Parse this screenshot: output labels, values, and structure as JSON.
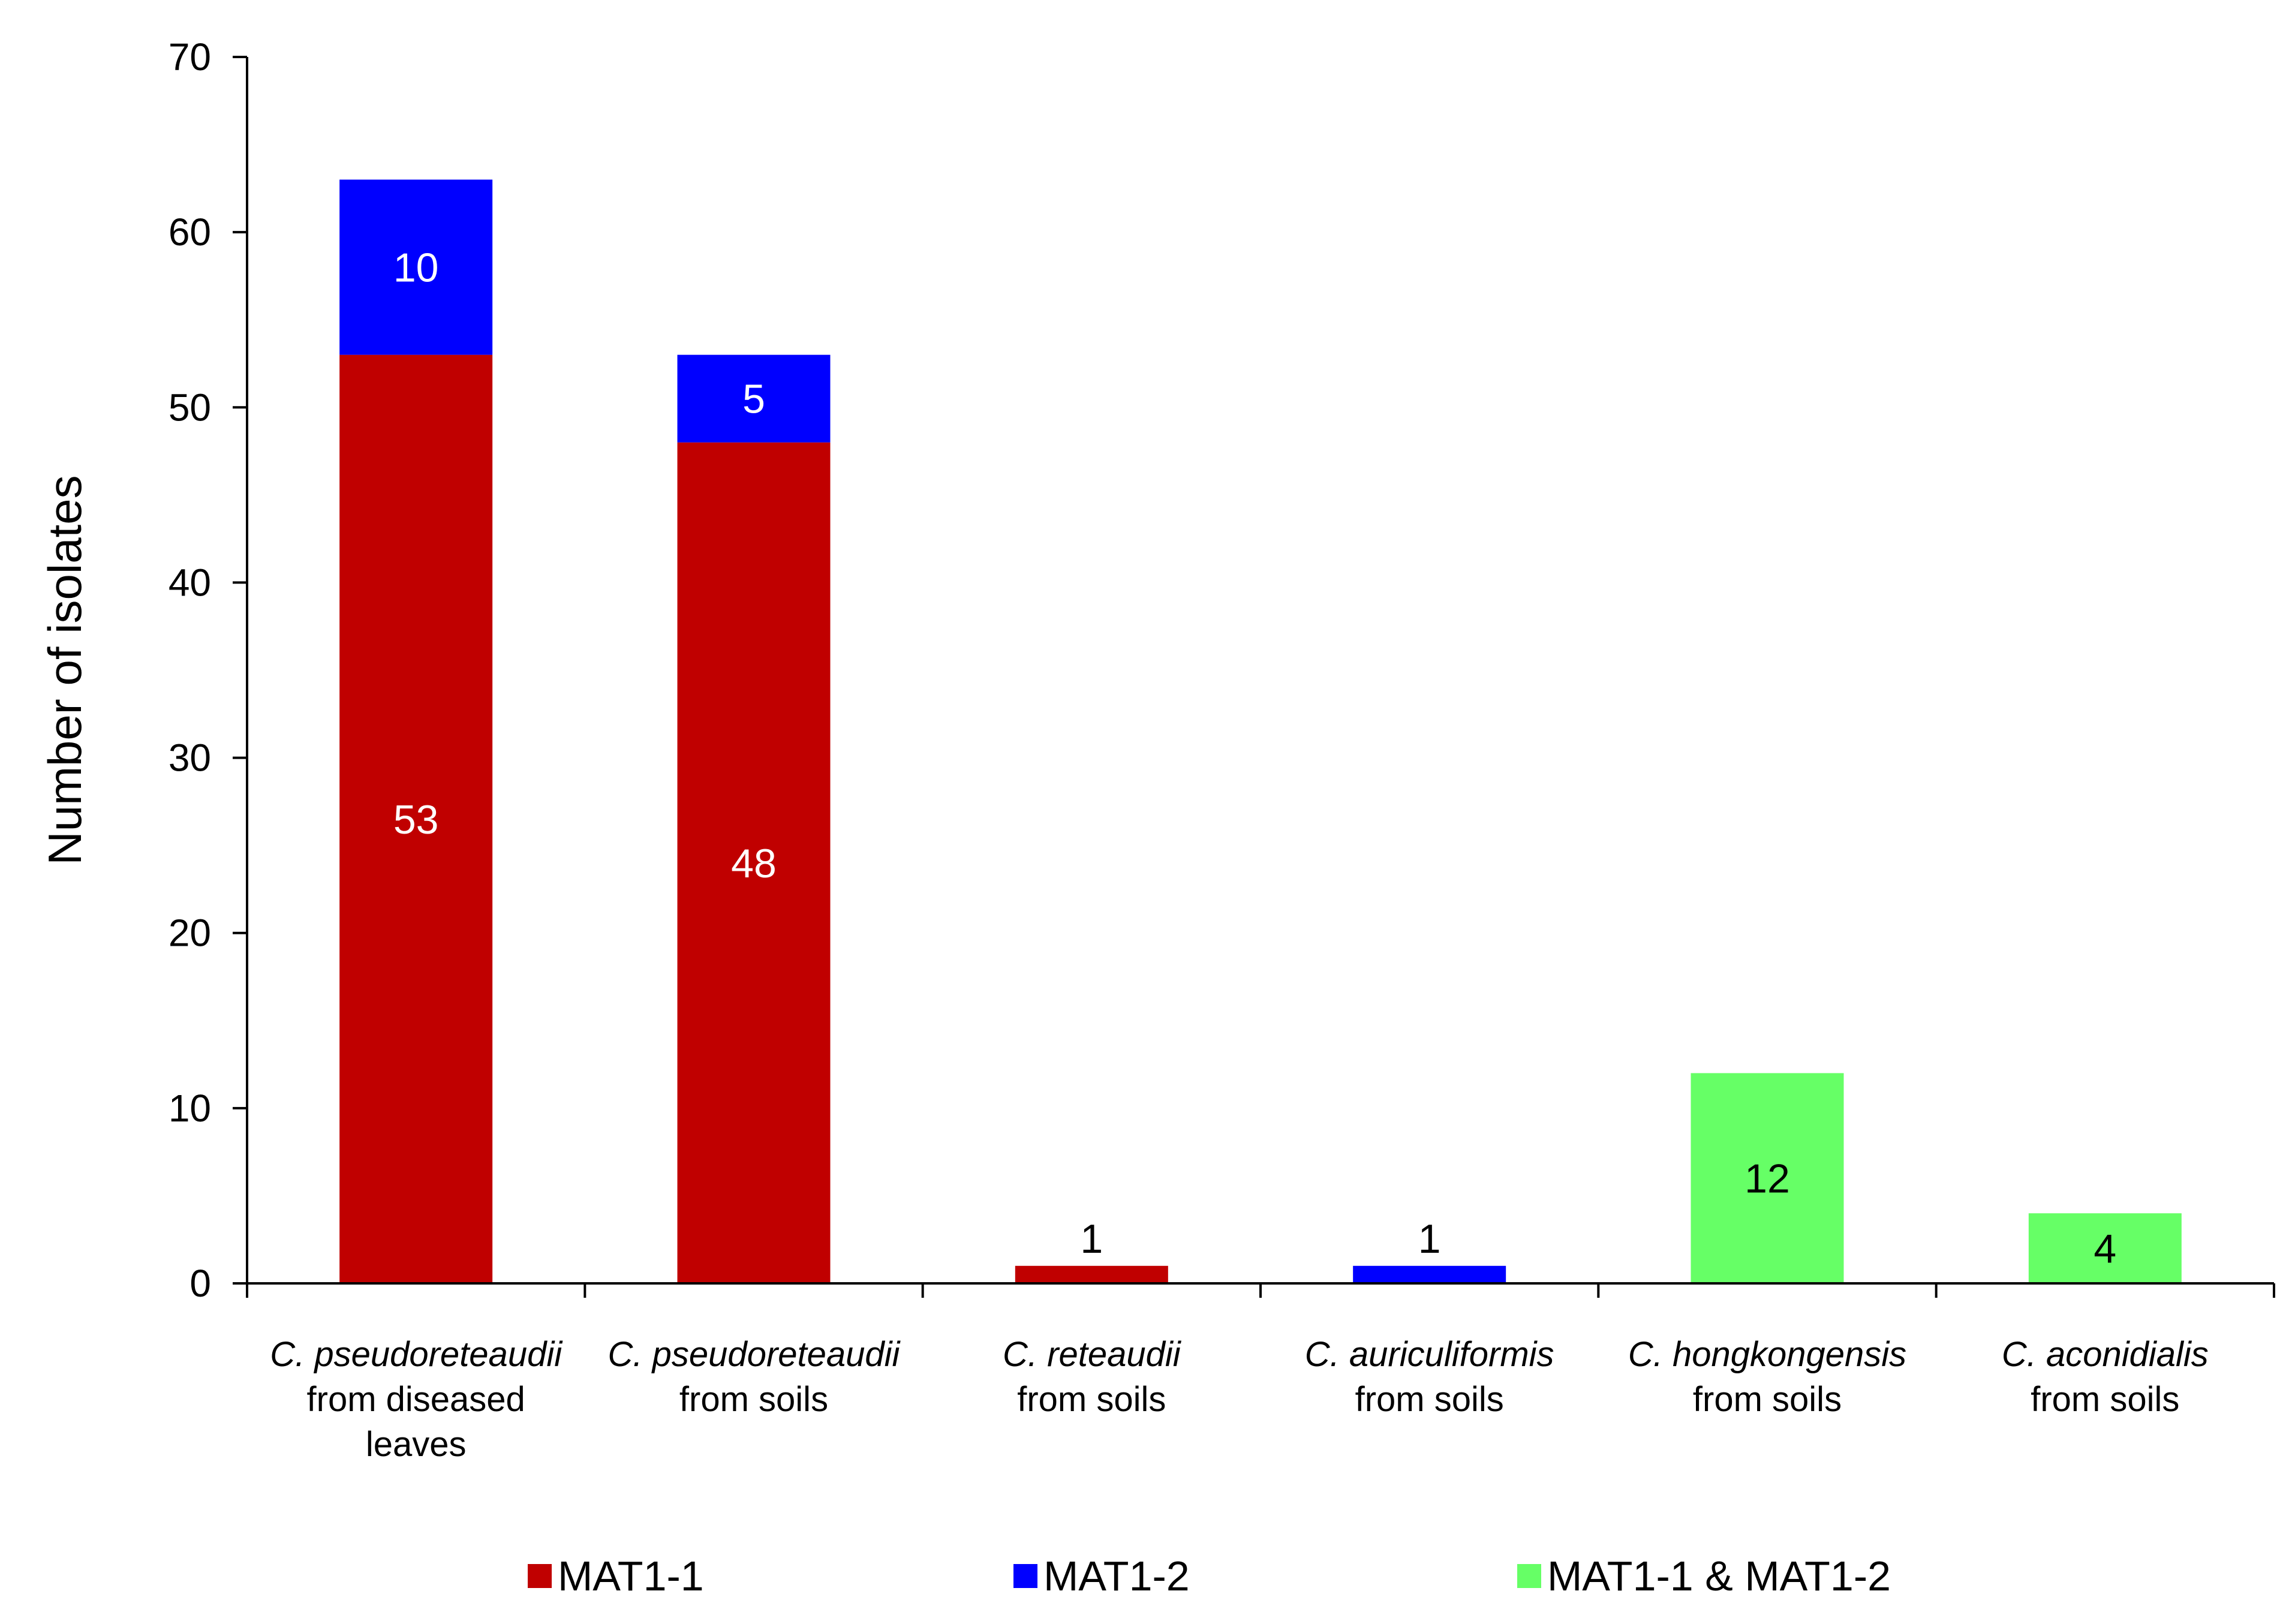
{
  "chart_data": {
    "type": "bar",
    "stacked": true,
    "title": "",
    "xlabel": "",
    "ylabel": "Number of isolates",
    "ylim": [
      0,
      70
    ],
    "yticks": [
      0,
      10,
      20,
      30,
      40,
      50,
      60,
      70
    ],
    "grid": false,
    "legend_position": "bottom",
    "categories": [
      {
        "species": "C. pseudoreteaudii",
        "source": [
          "from diseased",
          "leaves"
        ]
      },
      {
        "species": "C. pseudoreteaudii",
        "source": [
          "from soils"
        ]
      },
      {
        "species": "C. reteaudii",
        "source": [
          "from soils"
        ]
      },
      {
        "species": "C. auriculiformis",
        "source": [
          "from soils"
        ]
      },
      {
        "species": "C. hongkongensis",
        "source": [
          "from soils"
        ]
      },
      {
        "species": "C. aconidialis",
        "source": [
          "from soils"
        ]
      }
    ],
    "series": [
      {
        "name": "MAT1-1",
        "color": "#c00000",
        "values": [
          53,
          48,
          1,
          0,
          0,
          0
        ]
      },
      {
        "name": "MAT1-2",
        "color": "#0000ff",
        "values": [
          10,
          5,
          0,
          1,
          0,
          0
        ]
      },
      {
        "name": "MAT1-1 & MAT1-2",
        "color": "#66ff66",
        "values": [
          0,
          0,
          0,
          0,
          12,
          4
        ]
      }
    ]
  }
}
